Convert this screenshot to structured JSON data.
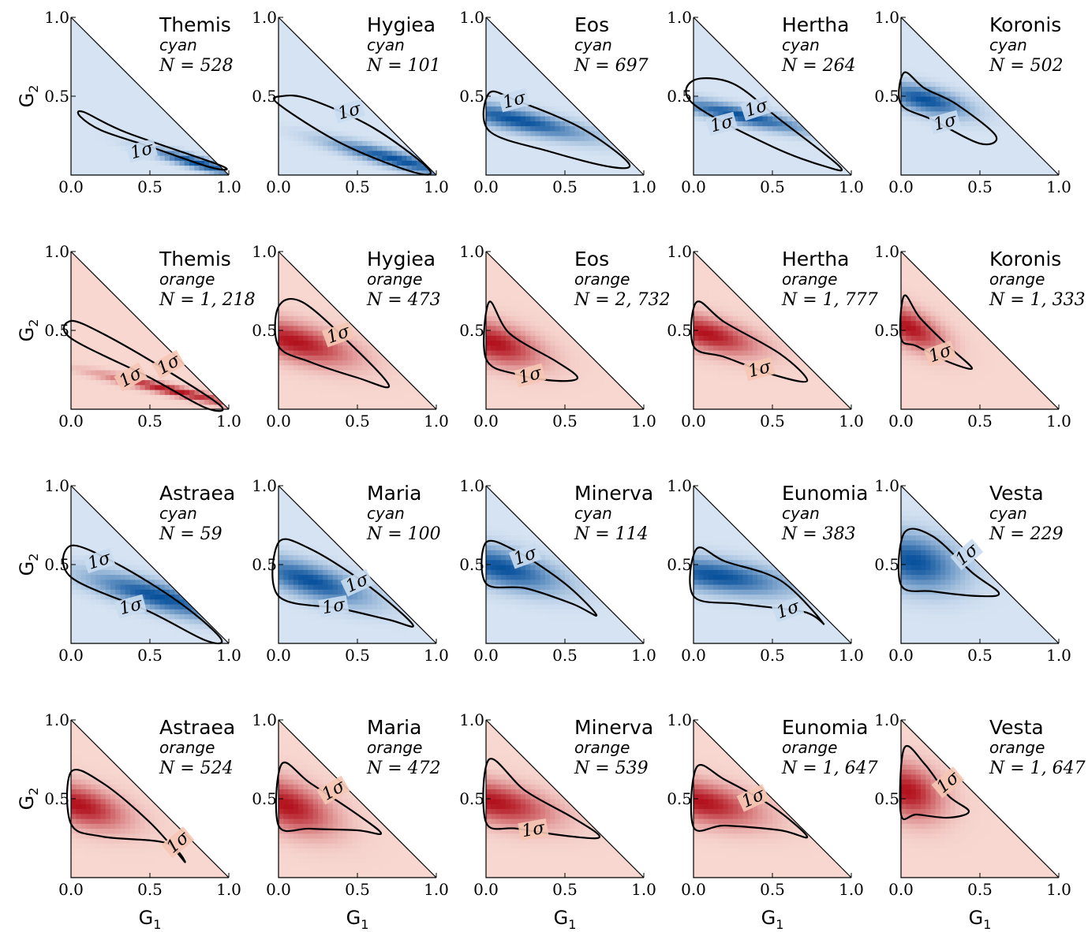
{
  "figure": {
    "x_axis_label_base": "G",
    "x_axis_label_sub": "1",
    "y_axis_label_base": "G",
    "y_axis_label_sub": "2",
    "tick_labels": [
      "0.0",
      "0.5",
      "1.0"
    ],
    "y_tick_labels": [
      "0.5",
      "1.0"
    ],
    "contour_label": "1σ",
    "colors": {
      "cyan_fill": "#08519c",
      "orange_fill": "#b2111d",
      "line": "#000000"
    }
  },
  "chart_data": [
    {
      "type": "heatmap",
      "family": "Themis",
      "color_class": "cyan",
      "n_label": "N = 528",
      "xlim": [
        0,
        1
      ],
      "ylim": [
        0,
        1
      ],
      "peak": [
        0.8,
        0.08
      ],
      "spread": [
        0.2,
        0.06
      ],
      "corr": -0.9,
      "contour": [
        [
          0.08,
          0.4
        ],
        [
          0.35,
          0.27
        ],
        [
          0.95,
          0.06
        ],
        [
          0.88,
          0.05
        ],
        [
          0.5,
          0.18
        ],
        [
          0.2,
          0.28
        ],
        [
          0.06,
          0.37
        ]
      ],
      "contour_labels": [
        [
          0.45,
          0.15,
          -15
        ]
      ]
    },
    {
      "type": "heatmap",
      "family": "Hygiea",
      "color_class": "cyan",
      "n_label": "N = 101",
      "xlim": [
        0,
        1
      ],
      "ylim": [
        0,
        1
      ],
      "peak": [
        0.75,
        0.1
      ],
      "spread": [
        0.28,
        0.08
      ],
      "corr": -0.9,
      "contour": [
        [
          0.02,
          0.5
        ],
        [
          0.2,
          0.48
        ],
        [
          0.6,
          0.3
        ],
        [
          0.95,
          0.04
        ],
        [
          0.85,
          0.02
        ],
        [
          0.4,
          0.2
        ],
        [
          0.0,
          0.45
        ]
      ],
      "contour_labels": [
        [
          0.45,
          0.4,
          -15
        ]
      ]
    },
    {
      "type": "heatmap",
      "family": "Eos",
      "color_class": "cyan",
      "n_label": "N = 697",
      "xlim": [
        0,
        1
      ],
      "ylim": [
        0,
        1
      ],
      "peak": [
        0.2,
        0.35
      ],
      "spread": [
        0.3,
        0.08
      ],
      "corr": -0.8,
      "contour": [
        [
          0.02,
          0.52
        ],
        [
          0.2,
          0.47
        ],
        [
          0.6,
          0.3
        ],
        [
          0.9,
          0.08
        ],
        [
          0.8,
          0.05
        ],
        [
          0.4,
          0.15
        ],
        [
          0.02,
          0.28
        ]
      ],
      "contour_labels": [
        [
          0.18,
          0.47,
          -15
        ]
      ]
    },
    {
      "type": "heatmap",
      "family": "Hertha",
      "color_class": "cyan",
      "n_label": "N = 264",
      "xlim": [
        0,
        1
      ],
      "ylim": [
        0,
        1
      ],
      "peak": [
        0.3,
        0.38
      ],
      "spread": [
        0.28,
        0.07
      ],
      "corr": -0.85,
      "contour": [
        [
          0.0,
          0.6
        ],
        [
          0.25,
          0.58
        ],
        [
          0.55,
          0.35
        ],
        [
          0.92,
          0.06
        ],
        [
          0.85,
          0.05
        ],
        [
          0.5,
          0.18
        ],
        [
          0.0,
          0.45
        ]
      ],
      "contour_labels": [
        [
          0.4,
          0.42,
          -18
        ],
        [
          0.18,
          0.32,
          -15
        ]
      ]
    },
    {
      "type": "heatmap",
      "family": "Koronis",
      "color_class": "cyan",
      "n_label": "N = 502",
      "xlim": [
        0,
        1
      ],
      "ylim": [
        0,
        1
      ],
      "peak": [
        0.15,
        0.48
      ],
      "spread": [
        0.18,
        0.07
      ],
      "corr": -0.6,
      "contour": [
        [
          0.02,
          0.65
        ],
        [
          0.15,
          0.55
        ],
        [
          0.35,
          0.45
        ],
        [
          0.6,
          0.25
        ],
        [
          0.5,
          0.2
        ],
        [
          0.2,
          0.35
        ],
        [
          0.0,
          0.45
        ]
      ],
      "contour_labels": [
        [
          0.28,
          0.33,
          -15
        ]
      ]
    },
    {
      "type": "heatmap",
      "family": "Themis",
      "color_class": "orange",
      "n_label": "N = 1, 218",
      "xlim": [
        0,
        1
      ],
      "ylim": [
        0,
        1
      ],
      "peak": [
        0.65,
        0.12
      ],
      "spread": [
        0.3,
        0.07
      ],
      "corr": -0.95,
      "contour": [
        [
          0.0,
          0.56
        ],
        [
          0.2,
          0.48
        ],
        [
          0.6,
          0.25
        ],
        [
          0.95,
          0.02
        ],
        [
          0.85,
          0.01
        ],
        [
          0.5,
          0.2
        ],
        [
          0.0,
          0.45
        ]
      ],
      "contour_labels": [
        [
          0.62,
          0.28,
          -30
        ],
        [
          0.38,
          0.2,
          -30
        ]
      ]
    },
    {
      "type": "heatmap",
      "family": "Hygiea",
      "color_class": "orange",
      "n_label": "N = 473",
      "xlim": [
        0,
        1
      ],
      "ylim": [
        0,
        1
      ],
      "peak": [
        0.1,
        0.43
      ],
      "spread": [
        0.25,
        0.1
      ],
      "corr": -0.6,
      "contour": [
        [
          0.0,
          0.65
        ],
        [
          0.15,
          0.68
        ],
        [
          0.45,
          0.42
        ],
        [
          0.7,
          0.15
        ],
        [
          0.5,
          0.2
        ],
        [
          0.2,
          0.3
        ],
        [
          0.0,
          0.4
        ]
      ],
      "contour_labels": [
        [
          0.38,
          0.47,
          -20
        ]
      ]
    },
    {
      "type": "heatmap",
      "family": "Eos",
      "color_class": "orange",
      "n_label": "N = 2, 732",
      "xlim": [
        0,
        1
      ],
      "ylim": [
        0,
        1
      ],
      "peak": [
        0.05,
        0.42
      ],
      "spread": [
        0.2,
        0.1
      ],
      "corr": -0.5,
      "contour": [
        [
          0.02,
          0.68
        ],
        [
          0.15,
          0.48
        ],
        [
          0.45,
          0.3
        ],
        [
          0.58,
          0.2
        ],
        [
          0.45,
          0.18
        ],
        [
          0.2,
          0.22
        ],
        [
          0.0,
          0.32
        ]
      ],
      "contour_labels": [
        [
          0.28,
          0.21,
          -15
        ]
      ]
    },
    {
      "type": "heatmap",
      "family": "Hertha",
      "color_class": "orange",
      "n_label": "N = 1, 777",
      "xlim": [
        0,
        1
      ],
      "ylim": [
        0,
        1
      ],
      "peak": [
        0.08,
        0.48
      ],
      "spread": [
        0.22,
        0.09
      ],
      "corr": -0.6,
      "contour": [
        [
          0.02,
          0.68
        ],
        [
          0.2,
          0.55
        ],
        [
          0.55,
          0.35
        ],
        [
          0.72,
          0.18
        ],
        [
          0.5,
          0.22
        ],
        [
          0.2,
          0.33
        ],
        [
          0.0,
          0.4
        ]
      ],
      "contour_labels": [
        [
          0.42,
          0.25,
          -15
        ]
      ]
    },
    {
      "type": "heatmap",
      "family": "Koronis",
      "color_class": "orange",
      "n_label": "N = 1, 333",
      "xlim": [
        0,
        1
      ],
      "ylim": [
        0,
        1
      ],
      "peak": [
        0.05,
        0.52
      ],
      "spread": [
        0.15,
        0.1
      ],
      "corr": -0.6,
      "contour": [
        [
          0.02,
          0.72
        ],
        [
          0.12,
          0.58
        ],
        [
          0.3,
          0.4
        ],
        [
          0.45,
          0.26
        ],
        [
          0.3,
          0.3
        ],
        [
          0.1,
          0.4
        ],
        [
          0.0,
          0.45
        ]
      ],
      "contour_labels": [
        [
          0.25,
          0.35,
          -20
        ]
      ]
    },
    {
      "type": "heatmap",
      "family": "Astraea",
      "color_class": "cyan",
      "n_label": "N = 59",
      "xlim": [
        0,
        1
      ],
      "ylim": [
        0,
        1
      ],
      "peak": [
        0.55,
        0.3
      ],
      "spread": [
        0.3,
        0.1
      ],
      "corr": -0.8,
      "contour": [
        [
          0.0,
          0.62
        ],
        [
          0.3,
          0.5
        ],
        [
          0.7,
          0.25
        ],
        [
          0.95,
          0.03
        ],
        [
          0.85,
          0.02
        ],
        [
          0.5,
          0.2
        ],
        [
          0.0,
          0.42
        ]
      ],
      "contour_labels": [
        [
          0.18,
          0.52,
          -18
        ],
        [
          0.38,
          0.23,
          -15
        ]
      ]
    },
    {
      "type": "heatmap",
      "family": "Maria",
      "color_class": "cyan",
      "n_label": "N = 100",
      "xlim": [
        0,
        1
      ],
      "ylim": [
        0,
        1
      ],
      "peak": [
        0.2,
        0.4
      ],
      "spread": [
        0.25,
        0.1
      ],
      "corr": -0.7,
      "contour": [
        [
          0.0,
          0.64
        ],
        [
          0.2,
          0.6
        ],
        [
          0.55,
          0.38
        ],
        [
          0.85,
          0.12
        ],
        [
          0.7,
          0.15
        ],
        [
          0.4,
          0.22
        ],
        [
          0.0,
          0.3
        ]
      ],
      "contour_labels": [
        [
          0.5,
          0.38,
          -25
        ],
        [
          0.35,
          0.23,
          -10
        ]
      ]
    },
    {
      "type": "heatmap",
      "family": "Minerva",
      "color_class": "cyan",
      "n_label": "N = 114",
      "xlim": [
        0,
        1
      ],
      "ylim": [
        0,
        1
      ],
      "peak": [
        0.1,
        0.48
      ],
      "spread": [
        0.25,
        0.1
      ],
      "corr": -0.6,
      "contour": [
        [
          0.0,
          0.64
        ],
        [
          0.2,
          0.58
        ],
        [
          0.5,
          0.38
        ],
        [
          0.7,
          0.18
        ],
        [
          0.55,
          0.25
        ],
        [
          0.25,
          0.35
        ],
        [
          0.0,
          0.38
        ]
      ],
      "contour_labels": [
        [
          0.25,
          0.55,
          -20
        ]
      ]
    },
    {
      "type": "heatmap",
      "family": "Eunomia",
      "color_class": "cyan",
      "n_label": "N = 383",
      "xlim": [
        0,
        1
      ],
      "ylim": [
        0,
        1
      ],
      "peak": [
        0.15,
        0.43
      ],
      "spread": [
        0.3,
        0.08
      ],
      "corr": -0.5,
      "contour": [
        [
          0.02,
          0.6
        ],
        [
          0.2,
          0.52
        ],
        [
          0.55,
          0.4
        ],
        [
          0.82,
          0.13
        ],
        [
          0.7,
          0.2
        ],
        [
          0.3,
          0.25
        ],
        [
          0.0,
          0.3
        ]
      ],
      "contour_labels": [
        [
          0.6,
          0.21,
          -20
        ]
      ]
    },
    {
      "type": "heatmap",
      "family": "Vesta",
      "color_class": "cyan",
      "n_label": "N = 229",
      "xlim": [
        0,
        1
      ],
      "ylim": [
        0,
        1
      ],
      "peak": [
        0.08,
        0.52
      ],
      "spread": [
        0.2,
        0.12
      ],
      "corr": -0.3,
      "contour": [
        [
          0.02,
          0.7
        ],
        [
          0.2,
          0.68
        ],
        [
          0.45,
          0.45
        ],
        [
          0.62,
          0.32
        ],
        [
          0.5,
          0.3
        ],
        [
          0.2,
          0.33
        ],
        [
          0.0,
          0.37
        ]
      ],
      "contour_labels": [
        [
          0.42,
          0.56,
          -40
        ]
      ]
    },
    {
      "type": "heatmap",
      "family": "Astraea",
      "color_class": "orange",
      "n_label": "N = 524",
      "xlim": [
        0,
        1
      ],
      "ylim": [
        0,
        1
      ],
      "peak": [
        0.05,
        0.46
      ],
      "spread": [
        0.2,
        0.1
      ],
      "corr": -0.5,
      "contour": [
        [
          0.0,
          0.67
        ],
        [
          0.2,
          0.6
        ],
        [
          0.5,
          0.35
        ],
        [
          0.72,
          0.1
        ],
        [
          0.6,
          0.22
        ],
        [
          0.2,
          0.26
        ],
        [
          0.0,
          0.34
        ]
      ],
      "contour_labels": [
        [
          0.68,
          0.22,
          -40
        ]
      ]
    },
    {
      "type": "heatmap",
      "family": "Maria",
      "color_class": "orange",
      "n_label": "N = 472",
      "xlim": [
        0,
        1
      ],
      "ylim": [
        0,
        1
      ],
      "peak": [
        0.05,
        0.46
      ],
      "spread": [
        0.2,
        0.12
      ],
      "corr": -0.5,
      "contour": [
        [
          0.02,
          0.72
        ],
        [
          0.2,
          0.6
        ],
        [
          0.5,
          0.4
        ],
        [
          0.65,
          0.28
        ],
        [
          0.5,
          0.3
        ],
        [
          0.2,
          0.31
        ],
        [
          0.0,
          0.33
        ]
      ],
      "contour_labels": [
        [
          0.35,
          0.55,
          -30
        ]
      ]
    },
    {
      "type": "heatmap",
      "family": "Minerva",
      "color_class": "orange",
      "n_label": "N = 539",
      "xlim": [
        0,
        1
      ],
      "ylim": [
        0,
        1
      ],
      "peak": [
        0.05,
        0.48
      ],
      "spread": [
        0.25,
        0.1
      ],
      "corr": -0.5,
      "contour": [
        [
          0.02,
          0.75
        ],
        [
          0.25,
          0.55
        ],
        [
          0.55,
          0.38
        ],
        [
          0.72,
          0.26
        ],
        [
          0.55,
          0.26
        ],
        [
          0.2,
          0.31
        ],
        [
          0.0,
          0.35
        ]
      ],
      "contour_labels": [
        [
          0.3,
          0.3,
          -10
        ]
      ]
    },
    {
      "type": "heatmap",
      "family": "Eunomia",
      "color_class": "orange",
      "n_label": "N = 1, 647",
      "xlim": [
        0,
        1
      ],
      "ylim": [
        0,
        1
      ],
      "peak": [
        0.05,
        0.48
      ],
      "spread": [
        0.25,
        0.1
      ],
      "corr": -0.5,
      "contour": [
        [
          0.02,
          0.7
        ],
        [
          0.2,
          0.62
        ],
        [
          0.5,
          0.45
        ],
        [
          0.72,
          0.26
        ],
        [
          0.55,
          0.3
        ],
        [
          0.2,
          0.33
        ],
        [
          0.0,
          0.32
        ]
      ],
      "contour_labels": [
        [
          0.38,
          0.5,
          -25
        ]
      ]
    },
    {
      "type": "heatmap",
      "family": "Vesta",
      "color_class": "orange",
      "n_label": "N = 1, 647",
      "xlim": [
        0,
        1
      ],
      "ylim": [
        0,
        1
      ],
      "peak": [
        0.04,
        0.55
      ],
      "spread": [
        0.15,
        0.12
      ],
      "corr": -0.3,
      "contour": [
        [
          0.02,
          0.82
        ],
        [
          0.15,
          0.72
        ],
        [
          0.3,
          0.52
        ],
        [
          0.43,
          0.42
        ],
        [
          0.3,
          0.38
        ],
        [
          0.1,
          0.4
        ],
        [
          0.0,
          0.4
        ]
      ],
      "contour_labels": [
        [
          0.3,
          0.6,
          -40
        ]
      ]
    }
  ]
}
